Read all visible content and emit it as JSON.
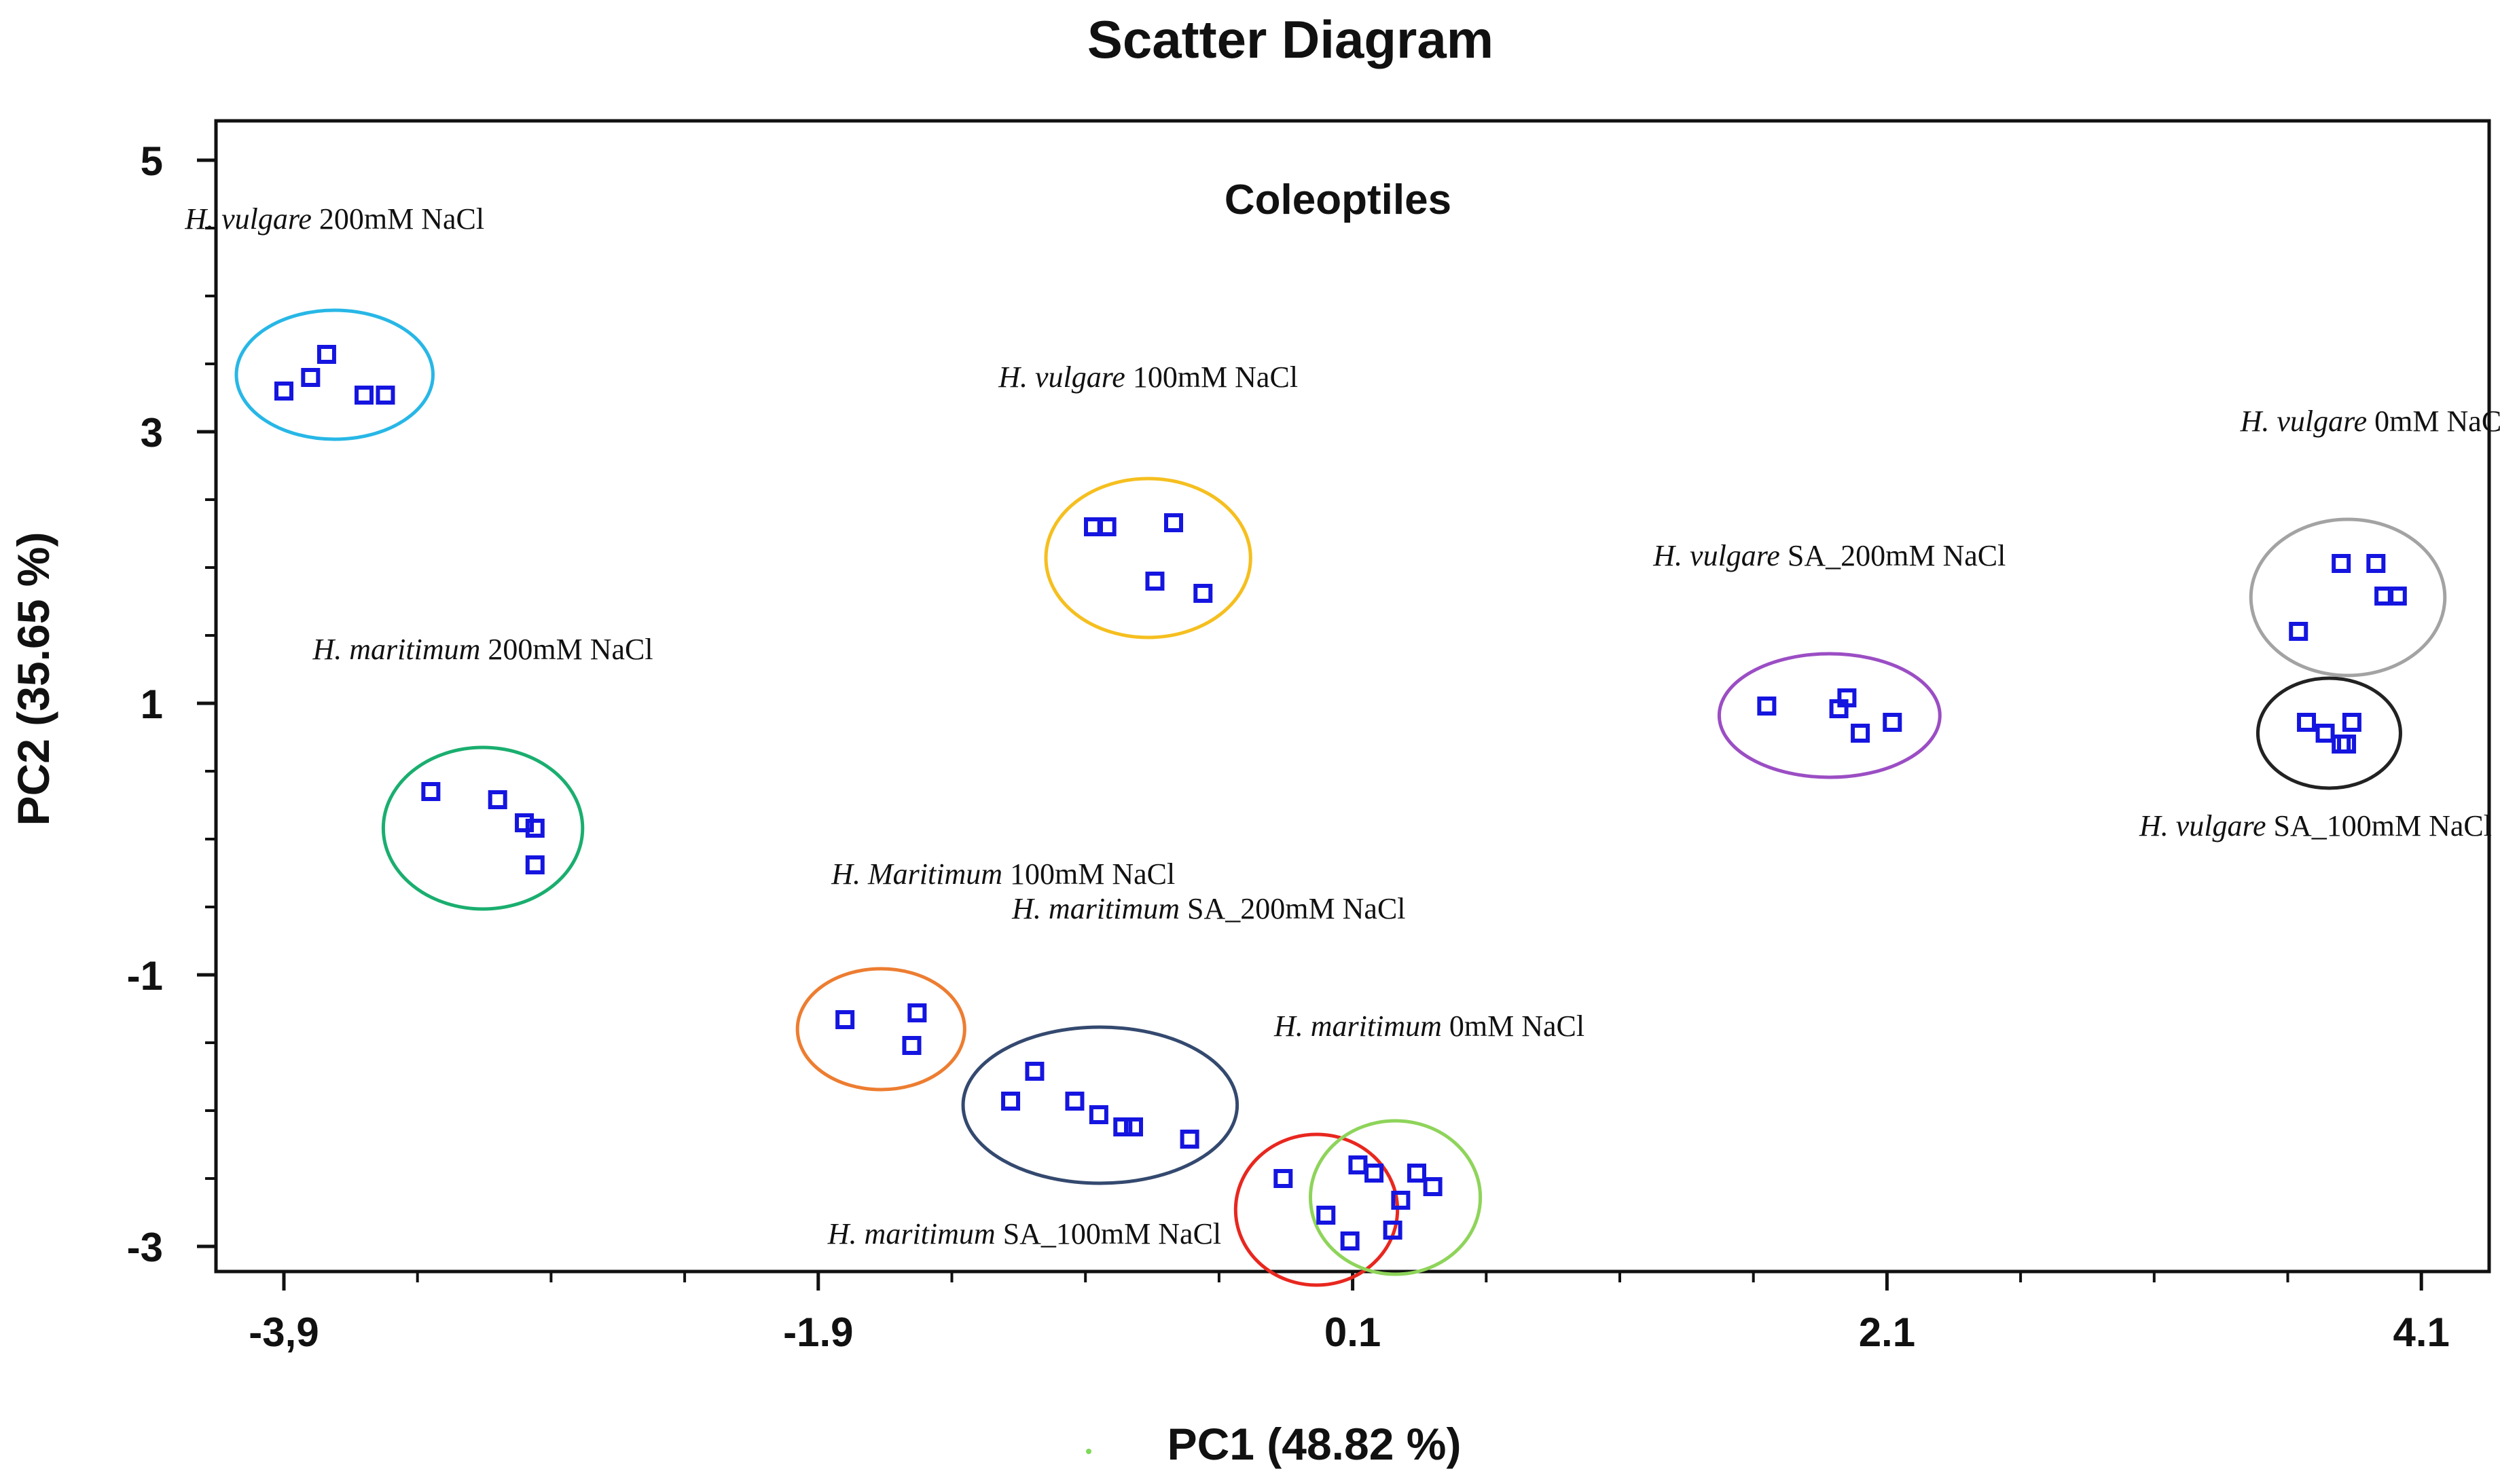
{
  "chart_data": {
    "type": "scatter",
    "title": "Scatter Diagram",
    "subtitle": "Coleoptiles",
    "xlabel": "PC1 (48.82 %)",
    "ylabel": "PC2 (35.65 %)",
    "xlim": [
      -4.1,
      4.2
    ],
    "ylim": [
      -3.2,
      5.2
    ],
    "xticks": [
      -3.9,
      -1.9,
      0.1,
      2.1,
      4.1
    ],
    "xtick_labels": [
      "-3,9",
      "-1.9",
      "0.1",
      "2.1",
      "4.1"
    ],
    "yticks": [
      5,
      3,
      1,
      -1,
      -3
    ],
    "ytick_labels": [
      "5",
      "3",
      "1",
      "-1",
      "-3"
    ],
    "legend_marker_color": "#7ed957",
    "marker_color": "#1515e0",
    "groups": [
      {
        "species": "H. vulgare",
        "treatment": " 200mM NaCl",
        "color": "#27b7e6",
        "points": [
          [
            -3.9,
            3.3
          ],
          [
            -3.8,
            3.4
          ],
          [
            -3.74,
            3.57
          ],
          [
            -3.6,
            3.27
          ],
          [
            -3.52,
            3.27
          ]
        ]
      },
      {
        "species": "H. vulgare",
        "treatment": " 100mM NaCl",
        "color": "#f5bf1f",
        "points": [
          [
            -0.87,
            2.3
          ],
          [
            -0.82,
            2.3
          ],
          [
            -0.57,
            2.33
          ],
          [
            -0.64,
            1.9
          ],
          [
            -0.46,
            1.81
          ]
        ]
      },
      {
        "species": "H. vulgare",
        "treatment": " 0mM NaCl",
        "color": "#a3a3a3",
        "points": [
          [
            3.64,
            1.53
          ],
          [
            3.8,
            2.03
          ],
          [
            3.93,
            2.03
          ],
          [
            3.96,
            1.79
          ],
          [
            4.01,
            1.79
          ]
        ]
      },
      {
        "species": "H. vulgare",
        "treatment": " SA_200mM NaCl",
        "color": "#9b4ec4",
        "points": [
          [
            1.65,
            0.98
          ],
          [
            1.92,
            0.96
          ],
          [
            1.95,
            1.04
          ],
          [
            2.0,
            0.78
          ],
          [
            2.12,
            0.86
          ]
        ]
      },
      {
        "species": "H. vulgare",
        "treatment": " SA_100mM NaCl",
        "color": "#222222",
        "points": [
          [
            3.67,
            0.86
          ],
          [
            3.74,
            0.78
          ],
          [
            3.8,
            0.7
          ],
          [
            3.84,
            0.86
          ],
          [
            3.82,
            0.7
          ]
        ]
      },
      {
        "species": "H. maritimum",
        "treatment": " 200mM NaCl",
        "color": "#1aae6f",
        "points": [
          [
            -3.35,
            0.35
          ],
          [
            -3.1,
            0.29
          ],
          [
            -3.0,
            0.12
          ],
          [
            -2.96,
            0.08
          ],
          [
            -2.96,
            -0.19
          ]
        ]
      },
      {
        "species": "H. Maritimum",
        "treatment": " 100mM NaCl",
        "color": "#ed7d31",
        "points": [
          [
            -1.8,
            -1.33
          ],
          [
            -1.53,
            -1.28
          ],
          [
            -1.55,
            -1.52
          ]
        ]
      },
      {
        "species": "H. maritimum",
        "treatment": " SA_200mM NaCl",
        "color": "#34496f",
        "points": [
          [
            -1.18,
            -1.93
          ],
          [
            -1.09,
            -1.71
          ],
          [
            -0.94,
            -1.93
          ],
          [
            -0.85,
            -2.03
          ],
          [
            -0.76,
            -2.12
          ],
          [
            -0.72,
            -2.12
          ],
          [
            -0.51,
            -2.21
          ]
        ]
      },
      {
        "species": "H. maritimum",
        "treatment": " SA_100mM NaCl",
        "color": "#e8271f",
        "points": [
          [
            -0.16,
            -2.5
          ],
          [
            0.0,
            -2.77
          ],
          [
            0.09,
            -2.96
          ]
        ]
      },
      {
        "species": "H. maritimum",
        "treatment": " 0mM NaCl",
        "color": "#8ed45a",
        "points": [
          [
            0.12,
            -2.4
          ],
          [
            0.18,
            -2.46
          ],
          [
            0.25,
            -2.88
          ],
          [
            0.28,
            -2.66
          ],
          [
            0.34,
            -2.46
          ],
          [
            0.4,
            -2.56
          ]
        ]
      }
    ]
  }
}
